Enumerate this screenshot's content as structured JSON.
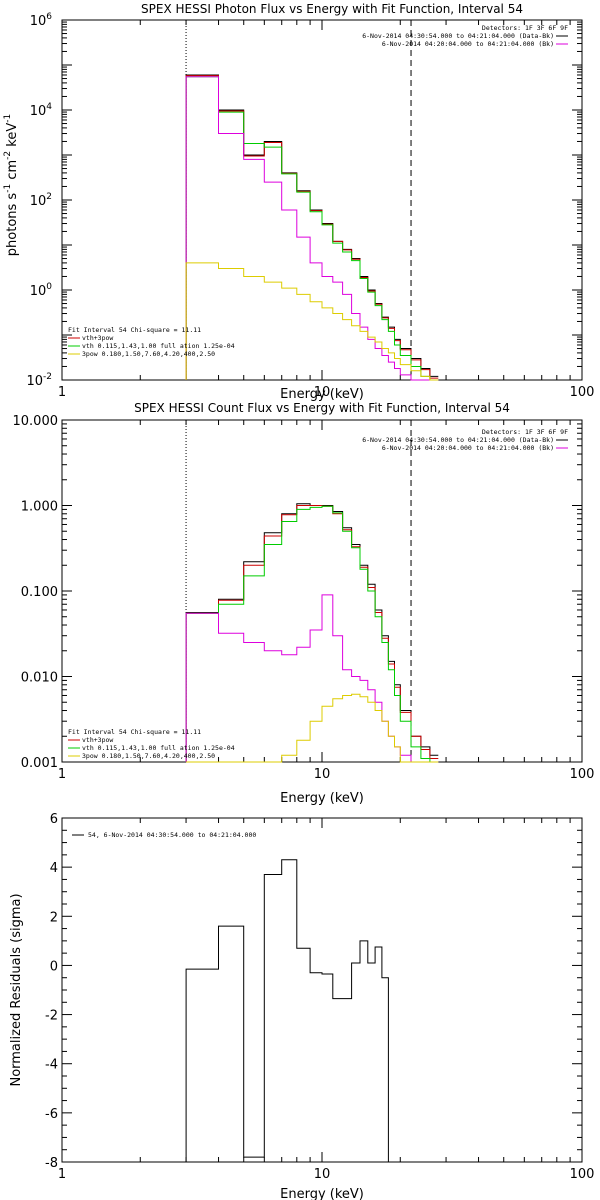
{
  "colors": {
    "black": "#000000",
    "red": "#cc0000",
    "green": "#00cc00",
    "magenta": "#dd00dd",
    "yellow": "#ddcc00"
  },
  "chart_data": [
    {
      "type": "line",
      "title": "SPEX HESSI Photon Flux vs Energy with Fit Function, Interval 54",
      "xlabel": "Energy (keV)",
      "ylabel": "photons s⁻¹ cm⁻² keV⁻¹",
      "xscale": "log",
      "yscale": "log",
      "xlim": [
        1,
        100
      ],
      "ylim": [
        0.01,
        1000000
      ],
      "xticks": [
        {
          "v": 1,
          "label": "1"
        },
        {
          "v": 10,
          "label": "10"
        },
        {
          "v": 100,
          "label": "100"
        }
      ],
      "yticks": [
        {
          "v": 0.01,
          "base": "10",
          "exp": "-2"
        },
        {
          "v": 1,
          "base": "10",
          "exp": "0"
        },
        {
          "v": 100,
          "base": "10",
          "exp": "2"
        },
        {
          "v": 10000,
          "base": "10",
          "exp": "4"
        },
        {
          "v": 1000000,
          "base": "10",
          "exp": "6"
        }
      ],
      "ylabel_styled": {
        "main": "photons s",
        "parts": [
          [
            "-1",
            " cm"
          ],
          [
            "-2",
            " keV"
          ],
          [
            "-1",
            ""
          ]
        ]
      },
      "edges": [
        3,
        4,
        5,
        6,
        7,
        8,
        9,
        10,
        11,
        12,
        13,
        14,
        15,
        16,
        17,
        18,
        19,
        20,
        22,
        24,
        26,
        28,
        30
      ],
      "vlines": [
        {
          "x": 3,
          "style": "dotted"
        },
        {
          "x": 22,
          "style": "dashed"
        }
      ],
      "series": [
        {
          "color": "black",
          "values": [
            60000,
            10000,
            1000,
            2000,
            400,
            160,
            60,
            30,
            12,
            8,
            5,
            2,
            1,
            0.5,
            0.25,
            0.15,
            0.08,
            0.05,
            0.03,
            0.018,
            0.012
          ]
        },
        {
          "color": "red",
          "values": [
            58000,
            9500,
            950,
            1900,
            390,
            155,
            58,
            29,
            12,
            7.8,
            4.8,
            1.9,
            0.95,
            0.48,
            0.24,
            0.14,
            0.075,
            0.047,
            0.028,
            0.017,
            0.011
          ]
        },
        {
          "color": "green",
          "values": [
            55000,
            9000,
            1800,
            1500,
            380,
            150,
            55,
            28,
            11,
            7,
            4.5,
            1.8,
            0.9,
            0.45,
            0.22,
            0.12,
            0.06,
            0.035,
            0.02,
            0.012,
            0.008
          ]
        },
        {
          "color": "magenta",
          "values": [
            55000,
            3000,
            800,
            250,
            60,
            15,
            4,
            2,
            1.5,
            0.8,
            0.3,
            0.15,
            0.08,
            0.05,
            0.035,
            0.025,
            0.018,
            0.013,
            0.01,
            0.008,
            0.006
          ]
        },
        {
          "color": "yellow",
          "values": [
            4,
            3,
            2,
            1.5,
            1.1,
            0.8,
            0.55,
            0.4,
            0.3,
            0.22,
            0.16,
            0.12,
            0.09,
            0.07,
            0.05,
            0.04,
            0.03,
            0.022,
            0.016,
            0.012,
            0.009
          ]
        }
      ],
      "legend_tr": [
        {
          "text": "Detectors: 1F 3F 6F 9F",
          "color": ""
        },
        {
          "text": "6-Nov-2014 04:30:54.000 to 04:21:04.000 (Data-Bk)",
          "color": "black"
        },
        {
          "text": "6-Nov-2014 04:20:04.000 to 04:21:04.000 (Bk)",
          "color": "magenta"
        }
      ],
      "legend_bl": [
        {
          "text": "Fit Interval 54    Chi-square = 11.11",
          "color": ""
        },
        {
          "text": "vth+3pow",
          "color": "red"
        },
        {
          "text": "vth 0.115,1.43,1.00  full ation 1.25e-04",
          "color": "green"
        },
        {
          "text": "3pow 0.180,1.50,7.60,4.20,400,2.50",
          "color": "yellow"
        }
      ]
    },
    {
      "type": "line",
      "title": "SPEX HESSI Count Flux vs Energy with Fit Function, Interval 54",
      "xlabel": "Energy (keV)",
      "ylabel": "",
      "xscale": "log",
      "yscale": "log",
      "xlim": [
        1,
        100
      ],
      "ylim": [
        0.001,
        10
      ],
      "xticks": [
        {
          "v": 1,
          "label": "1"
        },
        {
          "v": 10,
          "label": "10"
        },
        {
          "v": 100,
          "label": "100"
        }
      ],
      "yticks": [
        {
          "v": 0.001,
          "label": "0.001"
        },
        {
          "v": 0.01,
          "label": "0.010"
        },
        {
          "v": 0.1,
          "label": "0.100"
        },
        {
          "v": 1,
          "label": "1.000"
        },
        {
          "v": 10,
          "label": "10.000"
        }
      ],
      "edges": [
        3,
        4,
        5,
        6,
        7,
        8,
        9,
        10,
        11,
        12,
        13,
        14,
        15,
        16,
        17,
        18,
        19,
        20,
        22,
        24,
        26,
        28,
        30
      ],
      "vlines": [
        {
          "x": 3,
          "style": "dotted"
        },
        {
          "x": 22,
          "style": "dashed"
        }
      ],
      "series": [
        {
          "color": "black",
          "values": [
            0.056,
            0.08,
            0.22,
            0.48,
            0.8,
            1.05,
            1.0,
            1.0,
            0.85,
            0.55,
            0.35,
            0.2,
            0.12,
            0.06,
            0.03,
            0.015,
            0.008,
            0.004,
            0.002,
            0.0015,
            0.0012
          ]
        },
        {
          "color": "red",
          "values": [
            0.055,
            0.078,
            0.2,
            0.44,
            0.78,
            1.0,
            1.0,
            0.98,
            0.8,
            0.52,
            0.33,
            0.19,
            0.11,
            0.056,
            0.028,
            0.014,
            0.0075,
            0.0038,
            0.002,
            0.0014,
            0.0011
          ]
        },
        {
          "color": "green",
          "values": [
            0.055,
            0.07,
            0.15,
            0.35,
            0.65,
            0.9,
            0.95,
            0.98,
            0.82,
            0.5,
            0.32,
            0.18,
            0.1,
            0.05,
            0.025,
            0.012,
            0.006,
            0.003,
            0.0015,
            0.0011,
            0.001
          ]
        },
        {
          "color": "magenta",
          "values": [
            0.055,
            0.032,
            0.025,
            0.02,
            0.018,
            0.022,
            0.035,
            0.09,
            0.03,
            0.012,
            0.01,
            0.009,
            0.007,
            0.005,
            0.003,
            0.002,
            0.0015,
            0.0012,
            0.001,
            0.001,
            0.001
          ]
        },
        {
          "color": "yellow",
          "values": [
            0.001,
            0.001,
            0.001,
            0.001,
            0.0012,
            0.0018,
            0.003,
            0.0045,
            0.0055,
            0.006,
            0.0062,
            0.0058,
            0.005,
            0.004,
            0.003,
            0.002,
            0.0015,
            0.001,
            0.001,
            0.001,
            0.001
          ]
        }
      ],
      "legend_tr": [
        {
          "text": "Detectors: 1F 3F 6F 9F",
          "color": ""
        },
        {
          "text": "6-Nov-2014 04:30:54.000 to 04:21:04.000 (Data-Bk)",
          "color": "black"
        },
        {
          "text": "6-Nov-2014 04:20:04.000 to 04:21:04.000 (Bk)",
          "color": "magenta"
        }
      ],
      "legend_bl": [
        {
          "text": "Fit Interval 54    Chi-square = 11.11",
          "color": ""
        },
        {
          "text": "vth+3pow",
          "color": "red"
        },
        {
          "text": "vth 0.115,1.43,1.00  full ation 1.25e-04",
          "color": "green"
        },
        {
          "text": "3pow 0.180,1.50,7.60,4.20,400,2.50",
          "color": "yellow"
        }
      ]
    },
    {
      "type": "line",
      "title": "",
      "xlabel": "Energy (keV)",
      "ylabel": "Normalized Residuals (sigma)",
      "xscale": "log",
      "yscale": "linear",
      "xlim": [
        1,
        100
      ],
      "ylim": [
        -8,
        6
      ],
      "xticks": [
        {
          "v": 1,
          "label": "1"
        },
        {
          "v": 10,
          "label": "10"
        },
        {
          "v": 100,
          "label": "100"
        }
      ],
      "yticks": [
        {
          "v": -8,
          "label": "-8"
        },
        {
          "v": -6,
          "label": "-6"
        },
        {
          "v": -4,
          "label": "-4"
        },
        {
          "v": -2,
          "label": "-2"
        },
        {
          "v": 0,
          "label": "0"
        },
        {
          "v": 2,
          "label": "2"
        },
        {
          "v": 4,
          "label": "4"
        },
        {
          "v": 6,
          "label": "6"
        }
      ],
      "edges": [
        3,
        4,
        5,
        6,
        7,
        8,
        9,
        10,
        11,
        12,
        13,
        14,
        15,
        16,
        17,
        18,
        19,
        20,
        22,
        24,
        26,
        28,
        30
      ],
      "vlines": [],
      "series": [
        {
          "color": "black",
          "values": [
            -0.15,
            1.6,
            -7.8,
            3.7,
            4.3,
            0.7,
            -0.3,
            -0.35,
            -1.35,
            -1.35,
            0.1,
            1.0,
            0.1,
            0.75,
            -0.5,
            -8,
            -8,
            -8,
            -8,
            -8,
            -8
          ],
          "until": 22
        }
      ],
      "legend_tr": [],
      "legend_bl": [],
      "legend_tl": [
        {
          "text": "54,  6-Nov-2014 04:30:54.000 to 04:21:04.000",
          "color": "black"
        }
      ]
    }
  ]
}
